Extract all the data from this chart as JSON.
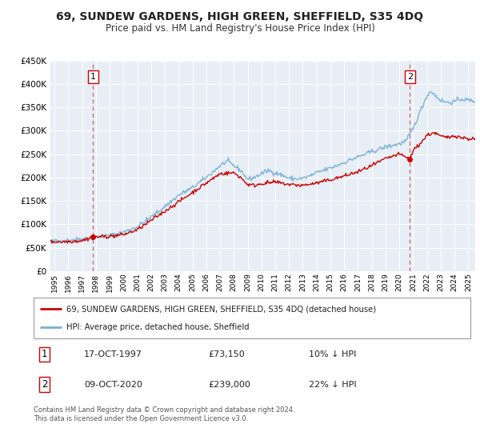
{
  "title": "69, SUNDEW GARDENS, HIGH GREEN, SHEFFIELD, S35 4DQ",
  "subtitle": "Price paid vs. HM Land Registry's House Price Index (HPI)",
  "property_label": "69, SUNDEW GARDENS, HIGH GREEN, SHEFFIELD, S35 4DQ (detached house)",
  "hpi_label": "HPI: Average price, detached house, Sheffield",
  "annotation1_date": "17-OCT-1997",
  "annotation1_price": "£73,150",
  "annotation1_pct": "10% ↓ HPI",
  "annotation2_date": "09-OCT-2020",
  "annotation2_price": "£239,000",
  "annotation2_pct": "22% ↓ HPI",
  "footer": "Contains HM Land Registry data © Crown copyright and database right 2024.\nThis data is licensed under the Open Government Licence v3.0.",
  "property_color": "#cc0000",
  "hpi_color": "#7ab0d4",
  "vline_color": "#cc4444",
  "dot_color": "#cc0000",
  "plot_bg": "#e8eef5",
  "ylim": [
    0,
    450000
  ],
  "yticks": [
    0,
    50000,
    100000,
    150000,
    200000,
    250000,
    300000,
    350000,
    400000,
    450000
  ],
  "marker1_x": 1997.8,
  "marker1_y": 73150,
  "marker2_x": 2020.77,
  "marker2_y": 239000,
  "xlim_left": 1994.7,
  "xlim_right": 2025.5
}
